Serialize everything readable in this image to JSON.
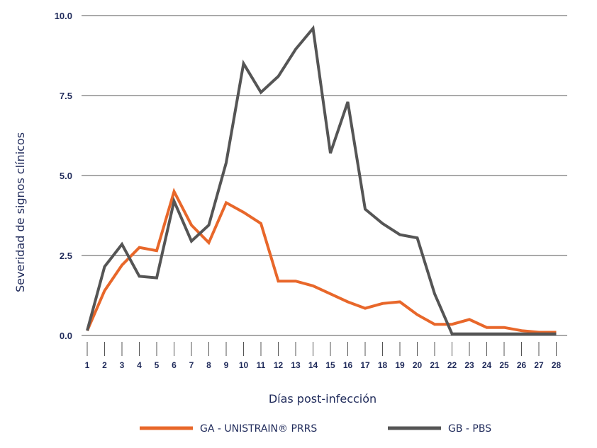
{
  "chart_data": {
    "type": "line",
    "xlabel": "Días post-infección",
    "ylabel": "Severidad de signos clínicos",
    "ylim": [
      0,
      10
    ],
    "yticks": [
      "0.0",
      "2.5",
      "5.0",
      "7.5",
      "10.0"
    ],
    "x": [
      1,
      2,
      3,
      4,
      5,
      6,
      7,
      8,
      9,
      10,
      11,
      12,
      13,
      14,
      15,
      16,
      17,
      18,
      19,
      20,
      21,
      22,
      23,
      24,
      25,
      26,
      27,
      28
    ],
    "grid": true,
    "legend_position": "bottom",
    "series": [
      {
        "name": "GA - UNISTRAIN® PRRS",
        "color": "#e8672a",
        "values": [
          0.15,
          1.4,
          2.2,
          2.75,
          2.65,
          4.5,
          3.45,
          2.9,
          4.15,
          3.85,
          3.5,
          1.7,
          1.7,
          1.55,
          1.3,
          1.05,
          0.85,
          1.0,
          1.05,
          0.65,
          0.35,
          0.35,
          0.5,
          0.25,
          0.25,
          0.15,
          0.1,
          0.1
        ]
      },
      {
        "name": "GB - PBS",
        "color": "#555555",
        "values": [
          0.15,
          2.15,
          2.85,
          1.85,
          1.8,
          4.2,
          2.95,
          3.45,
          5.4,
          8.5,
          7.6,
          8.1,
          8.95,
          9.6,
          5.7,
          7.3,
          3.95,
          3.5,
          3.15,
          3.05,
          1.3,
          0.05,
          0.05,
          0.05,
          0.05,
          0.05,
          0.05,
          0.05
        ]
      }
    ]
  }
}
